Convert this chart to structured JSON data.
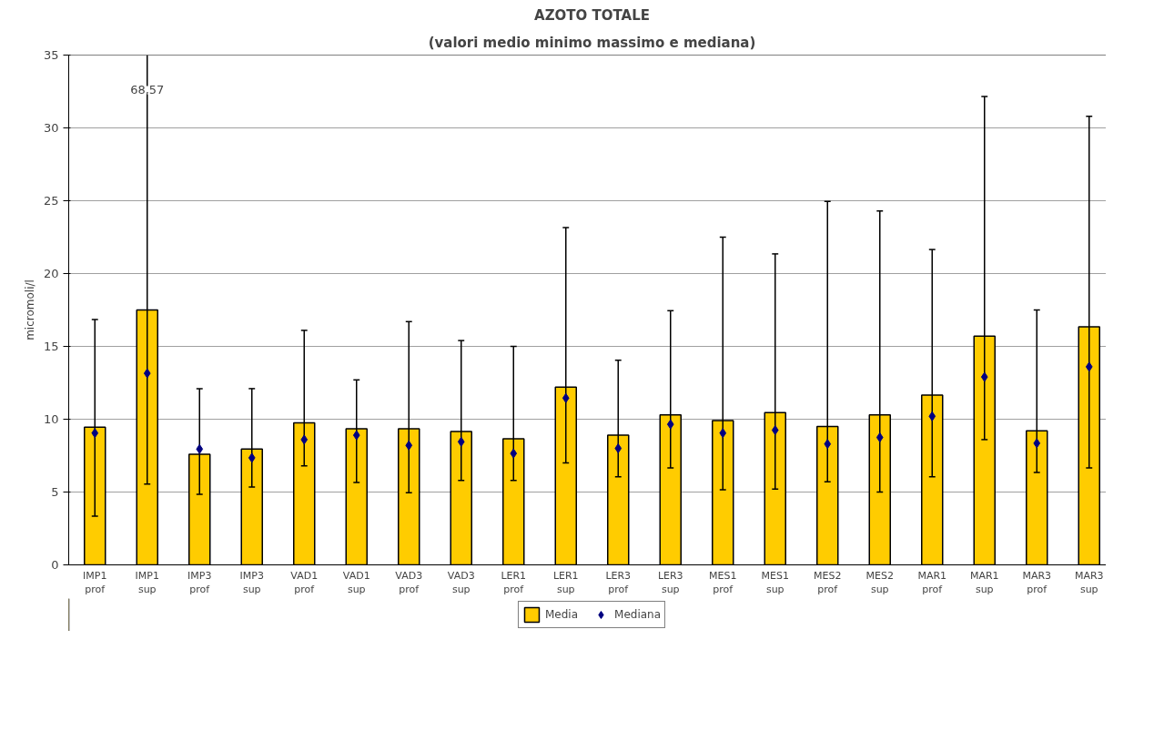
{
  "chart_data": {
    "type": "bar",
    "title": "AZOTO TOTALE",
    "subtitle": "(valori medio minimo massimo e mediana)",
    "ylabel": "micromoli/l",
    "categories": [
      "IMP1 prof",
      "IMP1 sup",
      "IMP3 prof",
      "IMP3 sup",
      "VAD1 prof",
      "VAD1 sup",
      "VAD3 prof",
      "VAD3 sup",
      "LER1 prof",
      "LER1 sup",
      "LER3 prof",
      "LER3 sup",
      "MES1 prof",
      "MES1 sup",
      "MES2 prof",
      "MES2 sup",
      "MAR1 prof",
      "MAR1 sup",
      "MAR3 prof",
      "MAR3 sup"
    ],
    "series": [
      {
        "name": "Media",
        "color": "#ffcc00",
        "values": [
          9.45,
          17.5,
          7.6,
          7.95,
          9.75,
          9.35,
          9.35,
          9.15,
          8.65,
          12.2,
          8.9,
          10.3,
          9.9,
          10.45,
          9.5,
          10.3,
          11.65,
          15.7,
          9.2,
          16.35
        ],
        "errors": [
          [
            3.35,
            16.85
          ],
          [
            5.55,
            35
          ],
          [
            4.85,
            12.1
          ],
          [
            5.35,
            12.1
          ],
          [
            6.8,
            16.1
          ],
          [
            5.65,
            12.7
          ],
          [
            4.95,
            16.7
          ],
          [
            5.8,
            15.4
          ],
          [
            5.8,
            15.0
          ],
          [
            7.0,
            23.15
          ],
          [
            6.05,
            14.05
          ],
          [
            6.65,
            17.45
          ],
          [
            5.15,
            22.5
          ],
          [
            5.2,
            21.35
          ],
          [
            5.7,
            24.95
          ],
          [
            5.0,
            24.3
          ],
          [
            6.05,
            21.65
          ],
          [
            8.6,
            32.15
          ],
          [
            6.35,
            17.5
          ],
          [
            6.65,
            30.8
          ]
        ]
      },
      {
        "name": "Mediana",
        "type": "scatter",
        "color": "#000080",
        "marker": "diamond",
        "values": [
          9.05,
          13.15,
          7.95,
          7.35,
          8.6,
          8.9,
          8.2,
          8.45,
          7.65,
          11.45,
          8.0,
          9.65,
          9.05,
          9.25,
          8.3,
          8.75,
          10.2,
          12.9,
          8.35,
          13.6
        ]
      }
    ],
    "annotations": [
      {
        "text": "68,57",
        "x": "IMP1 sup",
        "y": 32.6
      }
    ],
    "ylim": [
      0,
      35
    ],
    "yticks": [
      0,
      5,
      10,
      15,
      20,
      25,
      30,
      35
    ],
    "grid": "y",
    "legend": "bottom"
  }
}
